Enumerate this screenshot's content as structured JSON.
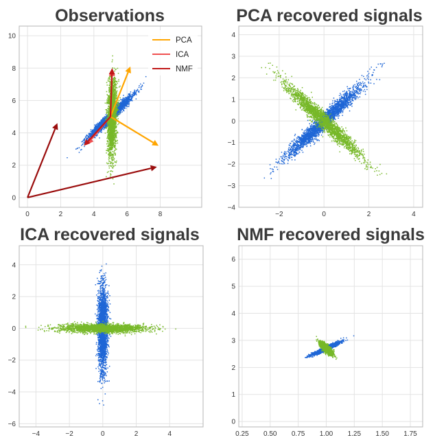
{
  "chart_data": [
    {
      "type": "scatter",
      "title": "Observations",
      "xlim": [
        -0.5,
        10.5
      ],
      "ylim": [
        -0.6,
        10.6
      ],
      "xticks": [
        0,
        2,
        4,
        6,
        8
      ],
      "yticks": [
        0,
        2,
        4,
        6,
        8,
        10
      ],
      "grid": true,
      "legend": {
        "placement": "top-right",
        "entries": [
          {
            "label": "PCA",
            "color": "#ffa500"
          },
          {
            "label": "ICA",
            "color": "#f05050"
          },
          {
            "label": "NMF",
            "color": "#c01818"
          }
        ]
      },
      "series": [
        {
          "color": "#1f66d6",
          "center": [
            5,
            5
          ],
          "direction": [
            0.7071,
            0.7071
          ],
          "spread_major": 0.9,
          "spread_minor": 0.11,
          "points": 2600
        },
        {
          "color": "#77b828",
          "center": [
            5.1,
            5.0
          ],
          "direction": [
            0.02,
            1.0
          ],
          "spread_major": 1.15,
          "spread_minor": 0.13,
          "points": 2400
        }
      ],
      "arrows": [
        {
          "method": "PCA",
          "color": "#ffa500",
          "from": [
            5,
            5
          ],
          "to": [
            6.2,
            8.1
          ]
        },
        {
          "method": "PCA",
          "color": "#ffa500",
          "from": [
            5,
            5
          ],
          "to": [
            7.9,
            3.2
          ]
        },
        {
          "method": "ICA",
          "color": "#f05050",
          "from": [
            5,
            5
          ],
          "to": [
            5.1,
            7.9
          ]
        },
        {
          "method": "ICA",
          "color": "#f05050",
          "from": [
            5,
            5
          ],
          "to": [
            3.6,
            3.3
          ]
        },
        {
          "method": "NMF",
          "color": "#c01818",
          "from": [
            5,
            5
          ],
          "to": [
            5.1,
            8.0
          ]
        },
        {
          "method": "NMF",
          "color": "#c01818",
          "from": [
            5,
            5
          ],
          "to": [
            3.4,
            3.2
          ]
        },
        {
          "method": "NMF",
          "color": "#9a0c0c",
          "from": [
            0,
            0
          ],
          "to": [
            1.8,
            4.6
          ]
        },
        {
          "method": "NMF",
          "color": "#9a0c0c",
          "from": [
            0,
            0
          ],
          "to": [
            7.8,
            1.9
          ]
        }
      ]
    },
    {
      "type": "scatter",
      "title": "PCA recovered signals",
      "xlim": [
        -3.8,
        4.4
      ],
      "ylim": [
        -4.0,
        4.4
      ],
      "xticks": [
        -2,
        0,
        2,
        4
      ],
      "yticks": [
        -4,
        -3,
        -2,
        -1,
        0,
        1,
        2,
        3,
        4
      ],
      "grid": true,
      "series": [
        {
          "color": "#1f66d6",
          "center": [
            0,
            0
          ],
          "direction": [
            0.707,
            0.707
          ],
          "spread_major": 1.15,
          "spread_minor": 0.14,
          "points": 2600
        },
        {
          "color": "#77b828",
          "center": [
            0,
            0
          ],
          "direction": [
            0.707,
            -0.707
          ],
          "spread_major": 1.15,
          "spread_minor": 0.14,
          "points": 2400
        }
      ]
    },
    {
      "type": "scatter",
      "title": "ICA recovered signals",
      "xlim": [
        -5.0,
        6.0
      ],
      "ylim": [
        -6.2,
        5.2
      ],
      "xticks": [
        -4,
        -2,
        0,
        2,
        4
      ],
      "yticks": [
        -6,
        -4,
        -2,
        0,
        2,
        4
      ],
      "grid": true,
      "series": [
        {
          "color": "#1f66d6",
          "center": [
            0,
            0
          ],
          "direction": [
            0,
            1
          ],
          "spread_major": 1.3,
          "spread_minor": 0.14,
          "points": 2600
        },
        {
          "color": "#77b828",
          "center": [
            0,
            0
          ],
          "direction": [
            1,
            0
          ],
          "spread_major": 1.3,
          "spread_minor": 0.13,
          "points": 2400
        }
      ]
    },
    {
      "type": "scatter",
      "title": "NMF recovered signals",
      "xlim": [
        0.22,
        1.86
      ],
      "ylim": [
        -0.2,
        6.5
      ],
      "xticks": [
        0.25,
        0.5,
        0.75,
        1.0,
        1.25,
        1.5,
        1.75
      ],
      "xtick_labels": [
        "0.25",
        "0.50",
        "0.75",
        "1.00",
        "1.25",
        "1.50",
        "1.75"
      ],
      "yticks": [
        0,
        1,
        2,
        3,
        4,
        5,
        6
      ],
      "grid": true,
      "series": [
        {
          "color": "#1f66d6",
          "center": [
            1.0,
            2.7
          ],
          "direction": [
            1,
            2.0
          ],
          "spread_major": 0.125,
          "spread_minor": 0.016,
          "points": 2600
        },
        {
          "color": "#77b828",
          "center": [
            1.0,
            2.7
          ],
          "direction": [
            1,
            -5.4
          ],
          "spread_major": 0.11,
          "spread_minor": 0.016,
          "points": 2400
        }
      ]
    }
  ]
}
